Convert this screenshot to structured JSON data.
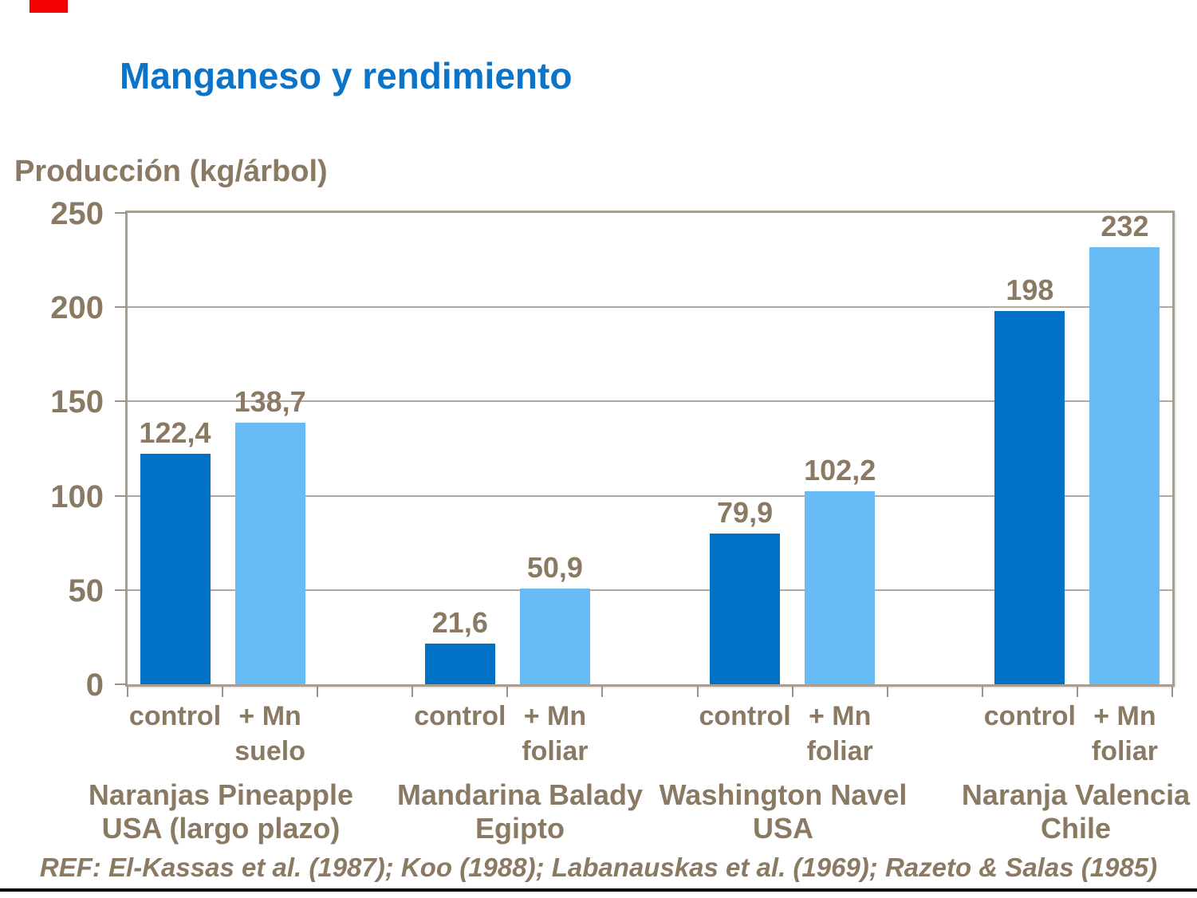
{
  "header": {
    "title": "Manganeso y rendimiento"
  },
  "y_axis": {
    "title": "Producción (kg/árbol)",
    "tick_labels": [
      "250",
      "200",
      "150",
      "100",
      "50",
      "0"
    ]
  },
  "footer": {
    "reference": "REF: El-Kassas et al. (1987); Koo (1988); Labanauskas et al. (1969); Razeto & Salas (1985)"
  },
  "colors": {
    "title_blue": "#0b73c8",
    "text_brown": "#8a7963",
    "bar_control": "#0071c5",
    "bar_mn": "#67bcf5",
    "gridline": "#b1a89e",
    "frame": "#a99e90",
    "corner_mark_red": "#f40000",
    "bottom_rule": "#000000"
  },
  "chart_data": {
    "type": "bar",
    "title": "Manganeso y rendimiento",
    "ylabel": "Producción (kg/árbol)",
    "xlabel": "",
    "ylim": [
      0,
      250
    ],
    "yticks": [
      0,
      50,
      100,
      150,
      200,
      250
    ],
    "grid": true,
    "legend": null,
    "series_colors": {
      "control": "#0071c5",
      "mn": "#67bcf5"
    },
    "groups": [
      {
        "label_lines": [
          "Naranjas Pineapple",
          "USA (largo plazo)"
        ],
        "bars": [
          {
            "series": "control",
            "axis_label_lines": [
              "control"
            ],
            "value": 122.4,
            "value_label": "122,4"
          },
          {
            "series": "mn",
            "axis_label_lines": [
              "+ Mn",
              "suelo"
            ],
            "value": 138.7,
            "value_label": "138,7"
          }
        ]
      },
      {
        "label_lines": [
          "Mandarina Balady",
          "Egipto"
        ],
        "bars": [
          {
            "series": "control",
            "axis_label_lines": [
              "control"
            ],
            "value": 21.6,
            "value_label": "21,6"
          },
          {
            "series": "mn",
            "axis_label_lines": [
              "+ Mn",
              "foliar"
            ],
            "value": 50.9,
            "value_label": "50,9"
          }
        ]
      },
      {
        "label_lines": [
          "Washington Navel",
          "USA"
        ],
        "bars": [
          {
            "series": "control",
            "axis_label_lines": [
              "control"
            ],
            "value": 79.9,
            "value_label": "79,9"
          },
          {
            "series": "mn",
            "axis_label_lines": [
              "+ Mn",
              "foliar"
            ],
            "value": 102.2,
            "value_label": "102,2"
          }
        ]
      },
      {
        "label_lines": [
          "Naranja Valencia",
          "Chile"
        ],
        "bars": [
          {
            "series": "control",
            "axis_label_lines": [
              "control"
            ],
            "value": 198,
            "value_label": "198"
          },
          {
            "series": "mn",
            "axis_label_lines": [
              "+ Mn",
              "foliar"
            ],
            "value": 232,
            "value_label": "232"
          }
        ]
      }
    ]
  }
}
